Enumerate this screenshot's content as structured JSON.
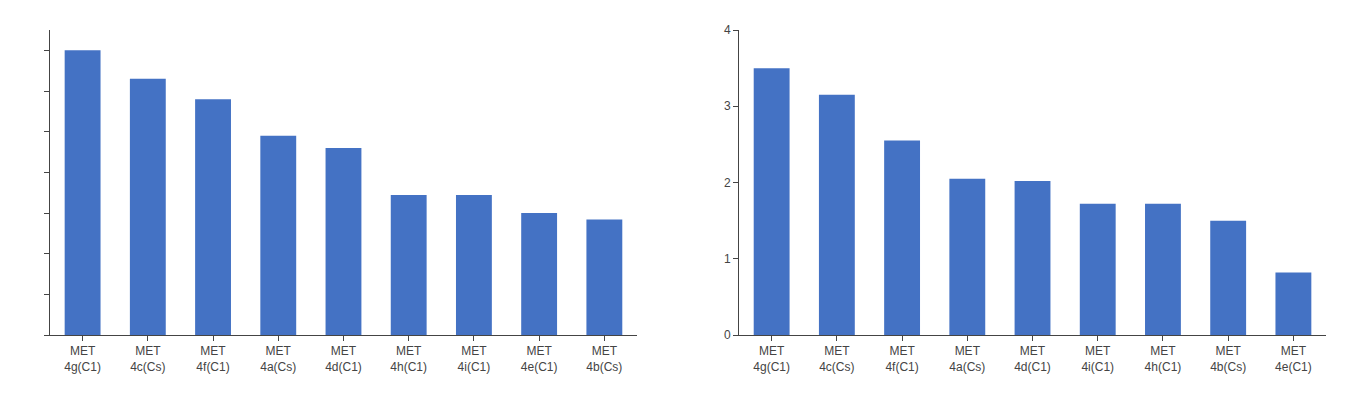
{
  "chart_data": [
    {
      "type": "bar",
      "categories": [
        "MET\n4g(C1)",
        "MET\n4c(Cs)",
        "MET\n4f(C1)",
        "MET\n4a(Cs)",
        "MET\n4d(C1)",
        "MET\n4h(C1)",
        "MET\n4i(C1)",
        "MET\n4e(C1)",
        "MET\n4b(Cs)"
      ],
      "values": [
        3.5,
        3.15,
        2.9,
        2.45,
        2.3,
        1.72,
        1.72,
        1.5,
        1.42
      ],
      "color": "#4472C4",
      "ylim": [
        0,
        3.75
      ],
      "grid": false,
      "tick_labels": "x"
    },
    {
      "type": "bar",
      "categories": [
        "MET\n4g(C1)",
        "MET\n4c(Cs)",
        "MET\n4f(C1)",
        "MET\n4a(Cs)",
        "MET\n4d(C1)",
        "MET\n4i(C1)",
        "MET\n4h(C1)",
        "MET\n4b(Cs)",
        "MET\n4e(C1)"
      ],
      "values": [
        3.5,
        3.15,
        2.55,
        2.05,
        2.02,
        1.72,
        1.72,
        1.5,
        0.82
      ],
      "color": "#4472C4",
      "ylim": [
        0,
        4.0
      ],
      "yticks": [
        0,
        1,
        2,
        3,
        4
      ],
      "grid": false
    }
  ]
}
